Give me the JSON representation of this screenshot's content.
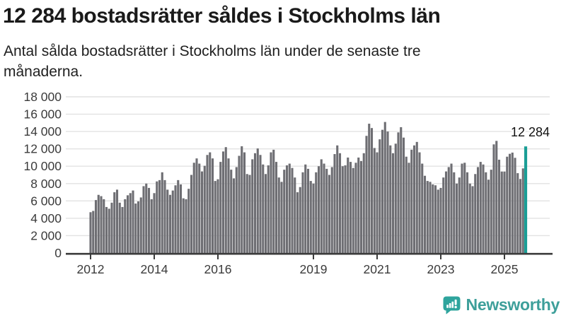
{
  "header": {
    "title": "12 284 bostadsrätter såldes i Stockholms län",
    "subtitle": "Antal sålda bostadsrätter i Stockholms län under de senaste tre månaderna."
  },
  "chart_data": {
    "type": "bar",
    "title": "12 284 bostadsrätter såldes i Stockholms län",
    "subtitle": "Antal sålda bostadsrätter i Stockholms län under de senaste tre månaderna.",
    "x_frequency": "monthly",
    "x_start": "2012-01",
    "x_end": "2025-09",
    "xlabel": "",
    "ylabel": "",
    "ylim": [
      0,
      18000
    ],
    "grid": true,
    "yticks": [
      0,
      2000,
      4000,
      6000,
      8000,
      10000,
      12000,
      14000,
      16000,
      18000
    ],
    "ytick_labels": [
      "0",
      "2 000",
      "4 000",
      "6 000",
      "8 000",
      "10 000",
      "12 000",
      "14 000",
      "16 000",
      "18 000"
    ],
    "xtick_years": [
      2012,
      2014,
      2016,
      2019,
      2021,
      2023,
      2025
    ],
    "values": [
      4700,
      4850,
      6100,
      6700,
      6550,
      6200,
      5300,
      5100,
      5800,
      7000,
      7300,
      5800,
      5300,
      6200,
      6650,
      6900,
      7200,
      5700,
      5950,
      6400,
      7700,
      8000,
      7500,
      6200,
      6900,
      8250,
      8400,
      9300,
      8400,
      7300,
      6700,
      7200,
      7800,
      8400,
      7900,
      6300,
      6200,
      7400,
      9000,
      10400,
      10900,
      10300,
      9400,
      10050,
      11300,
      11600,
      10900,
      8300,
      8500,
      10500,
      11700,
      12200,
      10900,
      9600,
      8600,
      9900,
      11200,
      12300,
      11600,
      9100,
      9000,
      10800,
      11500,
      12050,
      11300,
      10200,
      9100,
      10100,
      11600,
      11900,
      10500,
      8700,
      8200,
      9600,
      10100,
      10300,
      9800,
      8700,
      7000,
      7600,
      9300,
      10200,
      9700,
      8300,
      8000,
      9300,
      10000,
      10800,
      10300,
      9700,
      9000,
      9900,
      11400,
      12400,
      11500,
      10000,
      10100,
      11000,
      10500,
      9800,
      10400,
      11000,
      10600,
      11500,
      13500,
      14900,
      14400,
      12100,
      11600,
      13100,
      14200,
      15100,
      14000,
      12400,
      11500,
      12600,
      13900,
      14500,
      13300,
      11100,
      10400,
      11900,
      12400,
      12800,
      11600,
      10300,
      8900,
      8300,
      8200,
      7900,
      7800,
      7300,
      7500,
      8700,
      9400,
      9900,
      10300,
      9300,
      8000,
      8700,
      10300,
      10400,
      9300,
      8000,
      7700,
      9100,
      9900,
      10500,
      10200,
      9300,
      8450,
      9600,
      12520,
      12920,
      10750,
      9390,
      9390,
      11100,
      11430,
      11570,
      10970,
      9200,
      8530,
      9750,
      12284
    ],
    "highlight_last": true,
    "highlight_value": 12284,
    "highlight_label": "12 284",
    "bar_color": "#6e6e73",
    "highlight_color": "#1a9e96",
    "axis_color": "#3b3b3b",
    "grid_color": "#e2e2e2",
    "legend_position": "none"
  },
  "footer": {
    "brand": "Newsworthy",
    "brand_color": "#3d9f9a",
    "logo_icon": "speech-bubble-bar-chart-icon"
  }
}
